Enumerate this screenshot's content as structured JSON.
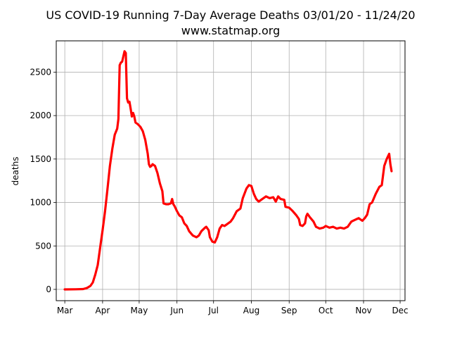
{
  "chart_data": {
    "type": "line",
    "title": "US COVID-19 Running 7-Day Average Deaths 03/01/20 - 11/24/20",
    "subtitle": "www.statmap.org",
    "xlabel": "",
    "ylabel": "deaths",
    "grid": true,
    "legend": "none",
    "xlim": [
      "2020-02-23",
      "2020-12-05"
    ],
    "ylim": [
      -130,
      2860
    ],
    "x_ticks": [
      {
        "date": "2020-03-01",
        "label": "Mar"
      },
      {
        "date": "2020-04-01",
        "label": "Apr"
      },
      {
        "date": "2020-05-01",
        "label": "May"
      },
      {
        "date": "2020-06-01",
        "label": "Jun"
      },
      {
        "date": "2020-07-01",
        "label": "Jul"
      },
      {
        "date": "2020-08-01",
        "label": "Aug"
      },
      {
        "date": "2020-09-01",
        "label": "Sep"
      },
      {
        "date": "2020-10-01",
        "label": "Oct"
      },
      {
        "date": "2020-11-01",
        "label": "Nov"
      },
      {
        "date": "2020-12-01",
        "label": "Dec"
      }
    ],
    "y_ticks": [
      {
        "value": 0,
        "label": "0"
      },
      {
        "value": 500,
        "label": "500"
      },
      {
        "value": 1000,
        "label": "1000"
      },
      {
        "value": 1500,
        "label": "1500"
      },
      {
        "value": 2000,
        "label": "2000"
      },
      {
        "value": 2500,
        "label": "2500"
      }
    ],
    "series": [
      {
        "color": "#ff0000",
        "points": [
          [
            "2020-03-01",
            0
          ],
          [
            "2020-03-10",
            1
          ],
          [
            "2020-03-16",
            4
          ],
          [
            "2020-03-19",
            15
          ],
          [
            "2020-03-22",
            40
          ],
          [
            "2020-03-24",
            80
          ],
          [
            "2020-03-26",
            170
          ],
          [
            "2020-03-28",
            280
          ],
          [
            "2020-03-30",
            480
          ],
          [
            "2020-04-01",
            680
          ],
          [
            "2020-04-03",
            900
          ],
          [
            "2020-04-05",
            1150
          ],
          [
            "2020-04-07",
            1420
          ],
          [
            "2020-04-09",
            1620
          ],
          [
            "2020-04-11",
            1780
          ],
          [
            "2020-04-13",
            1850
          ],
          [
            "2020-04-14",
            1960
          ],
          [
            "2020-04-15",
            2580
          ],
          [
            "2020-04-16",
            2610
          ],
          [
            "2020-04-17",
            2620
          ],
          [
            "2020-04-18",
            2680
          ],
          [
            "2020-04-19",
            2740
          ],
          [
            "2020-04-20",
            2720
          ],
          [
            "2020-04-21",
            2200
          ],
          [
            "2020-04-22",
            2150
          ],
          [
            "2020-04-23",
            2160
          ],
          [
            "2020-04-24",
            2080
          ],
          [
            "2020-04-25",
            1990
          ],
          [
            "2020-04-26",
            2030
          ],
          [
            "2020-04-27",
            1990
          ],
          [
            "2020-04-28",
            1920
          ],
          [
            "2020-04-30",
            1900
          ],
          [
            "2020-05-02",
            1870
          ],
          [
            "2020-05-04",
            1820
          ],
          [
            "2020-05-06",
            1720
          ],
          [
            "2020-05-08",
            1560
          ],
          [
            "2020-05-09",
            1440
          ],
          [
            "2020-05-10",
            1410
          ],
          [
            "2020-05-11",
            1420
          ],
          [
            "2020-05-12",
            1440
          ],
          [
            "2020-05-14",
            1420
          ],
          [
            "2020-05-16",
            1340
          ],
          [
            "2020-05-18",
            1220
          ],
          [
            "2020-05-20",
            1130
          ],
          [
            "2020-05-21",
            990
          ],
          [
            "2020-05-23",
            980
          ],
          [
            "2020-05-25",
            980
          ],
          [
            "2020-05-27",
            990
          ],
          [
            "2020-05-28",
            1040
          ],
          [
            "2020-05-29",
            980
          ],
          [
            "2020-05-30",
            960
          ],
          [
            "2020-06-01",
            900
          ],
          [
            "2020-06-03",
            850
          ],
          [
            "2020-06-05",
            830
          ],
          [
            "2020-06-07",
            760
          ],
          [
            "2020-06-09",
            730
          ],
          [
            "2020-06-11",
            670
          ],
          [
            "2020-06-14",
            620
          ],
          [
            "2020-06-17",
            600
          ],
          [
            "2020-06-19",
            620
          ],
          [
            "2020-06-21",
            670
          ],
          [
            "2020-06-24",
            710
          ],
          [
            "2020-06-25",
            720
          ],
          [
            "2020-06-27",
            680
          ],
          [
            "2020-06-28",
            600
          ],
          [
            "2020-06-30",
            550
          ],
          [
            "2020-07-02",
            540
          ],
          [
            "2020-07-04",
            600
          ],
          [
            "2020-07-06",
            700
          ],
          [
            "2020-07-08",
            740
          ],
          [
            "2020-07-10",
            730
          ],
          [
            "2020-07-12",
            750
          ],
          [
            "2020-07-15",
            780
          ],
          [
            "2020-07-17",
            820
          ],
          [
            "2020-07-20",
            900
          ],
          [
            "2020-07-23",
            930
          ],
          [
            "2020-07-25",
            1050
          ],
          [
            "2020-07-28",
            1160
          ],
          [
            "2020-07-30",
            1200
          ],
          [
            "2020-08-01",
            1190
          ],
          [
            "2020-08-03",
            1100
          ],
          [
            "2020-08-05",
            1040
          ],
          [
            "2020-08-07",
            1010
          ],
          [
            "2020-08-10",
            1040
          ],
          [
            "2020-08-13",
            1070
          ],
          [
            "2020-08-16",
            1050
          ],
          [
            "2020-08-19",
            1060
          ],
          [
            "2020-08-21",
            1010
          ],
          [
            "2020-08-23",
            1070
          ],
          [
            "2020-08-25",
            1040
          ],
          [
            "2020-08-28",
            1030
          ],
          [
            "2020-08-29",
            950
          ],
          [
            "2020-09-01",
            940
          ],
          [
            "2020-09-04",
            900
          ],
          [
            "2020-09-07",
            850
          ],
          [
            "2020-09-09",
            810
          ],
          [
            "2020-09-10",
            740
          ],
          [
            "2020-09-12",
            730
          ],
          [
            "2020-09-14",
            760
          ],
          [
            "2020-09-15",
            840
          ],
          [
            "2020-09-16",
            870
          ],
          [
            "2020-09-18",
            830
          ],
          [
            "2020-09-21",
            780
          ],
          [
            "2020-09-23",
            720
          ],
          [
            "2020-09-26",
            700
          ],
          [
            "2020-09-29",
            710
          ],
          [
            "2020-10-01",
            730
          ],
          [
            "2020-10-04",
            710
          ],
          [
            "2020-10-07",
            720
          ],
          [
            "2020-10-10",
            700
          ],
          [
            "2020-10-13",
            710
          ],
          [
            "2020-10-16",
            700
          ],
          [
            "2020-10-19",
            720
          ],
          [
            "2020-10-22",
            780
          ],
          [
            "2020-10-25",
            800
          ],
          [
            "2020-10-28",
            820
          ],
          [
            "2020-10-31",
            790
          ],
          [
            "2020-11-02",
            820
          ],
          [
            "2020-11-04",
            860
          ],
          [
            "2020-11-06",
            980
          ],
          [
            "2020-11-08",
            1000
          ],
          [
            "2020-11-11",
            1100
          ],
          [
            "2020-11-14",
            1180
          ],
          [
            "2020-11-16",
            1200
          ],
          [
            "2020-11-18",
            1420
          ],
          [
            "2020-11-20",
            1500
          ],
          [
            "2020-11-22",
            1560
          ],
          [
            "2020-11-23",
            1440
          ],
          [
            "2020-11-24",
            1360
          ]
        ]
      }
    ]
  }
}
